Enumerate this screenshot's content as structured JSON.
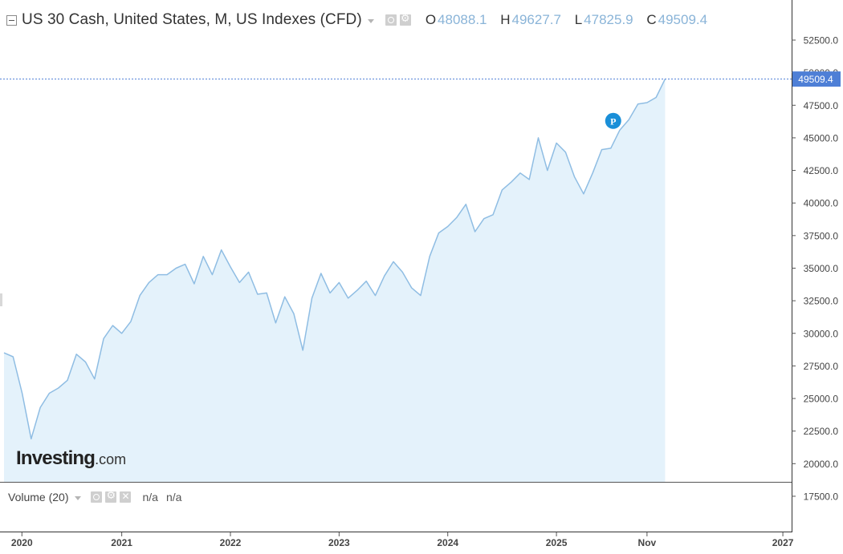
{
  "header": {
    "title": "US 30 Cash, United States, M, US Indexes (CFD)",
    "ohlc": [
      {
        "key": "O",
        "value": "48088.1"
      },
      {
        "key": "H",
        "value": "49627.7"
      },
      {
        "key": "L",
        "value": "47825.9"
      },
      {
        "key": "C",
        "value": "49509.4"
      }
    ]
  },
  "brand": {
    "name": "Investing",
    "suffix": ".com"
  },
  "volume": {
    "label": "Volume (20)",
    "value1": "n/a",
    "value2": "n/a"
  },
  "price_label": "49509.4",
  "marker": {
    "letter": "P",
    "index": 67,
    "value": 46300
  },
  "colors": {
    "line": "#8fbde3",
    "fill": "#e4f2fb",
    "last_price_bg": "#4e7fd6",
    "marker": "#1a8fd8"
  },
  "icons": [
    "collapse-icon",
    "chevron-down-icon",
    "eye-icon",
    "gear-icon",
    "close-icon"
  ],
  "chart_data": {
    "type": "area",
    "title": "US 30 Cash, United States, M, US Indexes (CFD)",
    "ylim": [
      16000,
      53000
    ],
    "x_start": "2019-12",
    "y_ticks": [
      "17500.0",
      "20000.0",
      "22500.0",
      "25000.0",
      "27500.0",
      "30000.0",
      "32500.0",
      "35000.0",
      "37500.0",
      "40000.0",
      "42500.0",
      "45000.0",
      "47500.0",
      "50000.0",
      "52500.0"
    ],
    "x_ticks": [
      {
        "label": "2020",
        "index": 1
      },
      {
        "label": "2021",
        "index": 13
      },
      {
        "label": "2022",
        "index": 25
      },
      {
        "label": "2023",
        "index": 37
      },
      {
        "label": "2024",
        "index": 49
      },
      {
        "label": "2025",
        "index": 61
      },
      {
        "label": "Nov",
        "index": 71
      },
      {
        "label": "2027",
        "index": 86
      }
    ],
    "x_max_index": 87,
    "last_price": 49509.4,
    "grid": false,
    "series": [
      {
        "values": [
          28500,
          28200,
          25400,
          21900,
          24300,
          25400,
          25800,
          26400,
          28400,
          27800,
          26500,
          29600,
          30600,
          30000,
          30900,
          32900,
          33900,
          34500,
          34500,
          35000,
          35300,
          33800,
          35900,
          34500,
          36400,
          35100,
          33900,
          34700,
          33000,
          33100,
          30800,
          32800,
          31500,
          28700,
          32700,
          34600,
          33100,
          33900,
          32700,
          33300,
          34000,
          32900,
          34400,
          35500,
          34700,
          33500,
          32900,
          35900,
          37700,
          38200,
          38900,
          39900,
          37800,
          38800,
          39100,
          41000,
          41600,
          42300,
          41800,
          45000,
          42500,
          44600,
          43900,
          42000,
          40700,
          42300,
          44100,
          44200,
          45600,
          46400,
          47600,
          47700,
          48100,
          49509.4
        ]
      }
    ]
  }
}
